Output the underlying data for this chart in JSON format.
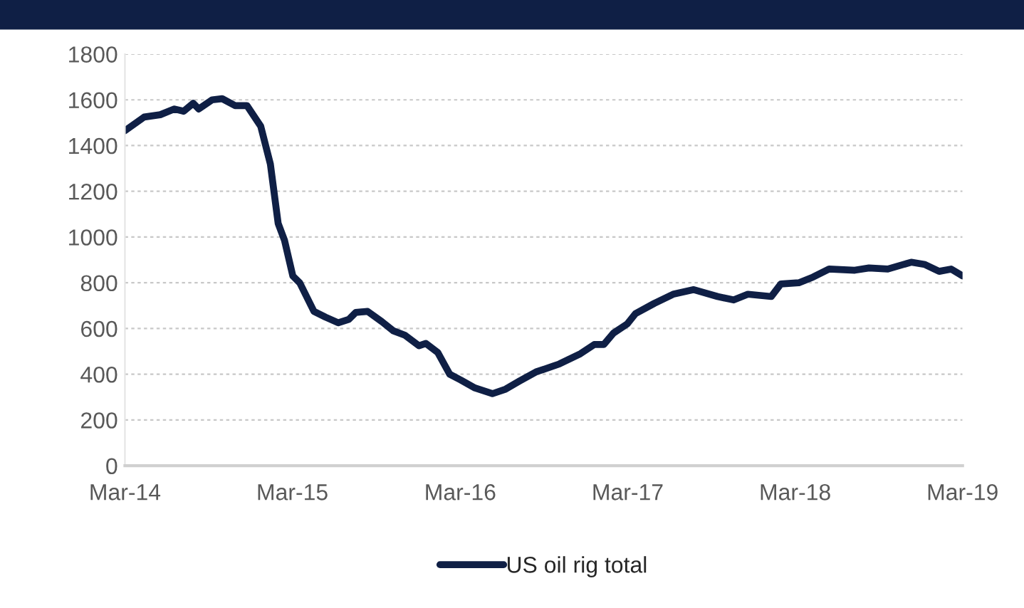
{
  "chart_data": {
    "type": "line",
    "x": [
      "2014-03-01",
      "2014-04-12",
      "2014-05-17",
      "2014-06-17",
      "2014-07-07",
      "2014-07-28",
      "2014-08-09",
      "2014-09-07",
      "2014-09-29",
      "2014-10-27",
      "2014-11-22",
      "2014-12-22",
      "2015-01-12",
      "2015-01-29",
      "2015-02-12",
      "2015-03-02",
      "2015-03-17",
      "2015-04-17",
      "2015-05-12",
      "2015-06-09",
      "2015-07-02",
      "2015-07-17",
      "2015-08-12",
      "2015-09-12",
      "2015-10-07",
      "2015-11-02",
      "2015-12-02",
      "2015-12-17",
      "2016-01-12",
      "2016-02-07",
      "2016-03-02",
      "2016-04-02",
      "2016-05-10",
      "2016-06-08",
      "2016-07-08",
      "2016-08-13",
      "2016-10-03",
      "2016-11-18",
      "2016-12-18",
      "2017-01-08",
      "2017-01-29",
      "2017-02-28",
      "2017-03-18",
      "2017-04-28",
      "2017-06-08",
      "2017-07-23",
      "2017-09-13",
      "2017-10-18",
      "2017-11-18",
      "2018-01-08",
      "2018-01-29",
      "2018-03-09",
      "2018-04-09",
      "2018-05-14",
      "2018-07-09",
      "2018-08-09",
      "2018-09-19",
      "2018-11-09",
      "2018-12-09",
      "2019-01-09",
      "2019-02-04",
      "2019-03-01"
    ],
    "series": [
      {
        "name": "US oil rig total",
        "color": "#0f1f45",
        "values": [
          1465,
          1525,
          1535,
          1560,
          1550,
          1585,
          1560,
          1600,
          1605,
          1575,
          1575,
          1485,
          1320,
          1060,
          985,
          830,
          800,
          675,
          650,
          625,
          640,
          670,
          675,
          630,
          590,
          570,
          525,
          535,
          495,
          400,
          375,
          340,
          315,
          335,
          370,
          410,
          445,
          490,
          530,
          530,
          580,
          620,
          665,
          710,
          750,
          770,
          740,
          725,
          750,
          740,
          795,
          800,
          825,
          860,
          855,
          865,
          860,
          890,
          880,
          850,
          860,
          830
        ]
      }
    ],
    "xlim": [
      "2014-03-01",
      "2019-03-01"
    ],
    "xticks": [
      {
        "value": "2014-03-01",
        "label": "Mar-14"
      },
      {
        "value": "2015-03-01",
        "label": "Mar-15"
      },
      {
        "value": "2016-03-01",
        "label": "Mar-16"
      },
      {
        "value": "2017-03-01",
        "label": "Mar-17"
      },
      {
        "value": "2018-03-01",
        "label": "Mar-18"
      },
      {
        "value": "2019-03-01",
        "label": "Mar-19"
      }
    ],
    "ylim": [
      0,
      1800
    ],
    "yticks": [
      0,
      200,
      400,
      600,
      800,
      1000,
      1200,
      1400,
      1600,
      1800
    ],
    "grid": "y",
    "legend": "bottom",
    "line_style": "solid",
    "marker": "none"
  }
}
